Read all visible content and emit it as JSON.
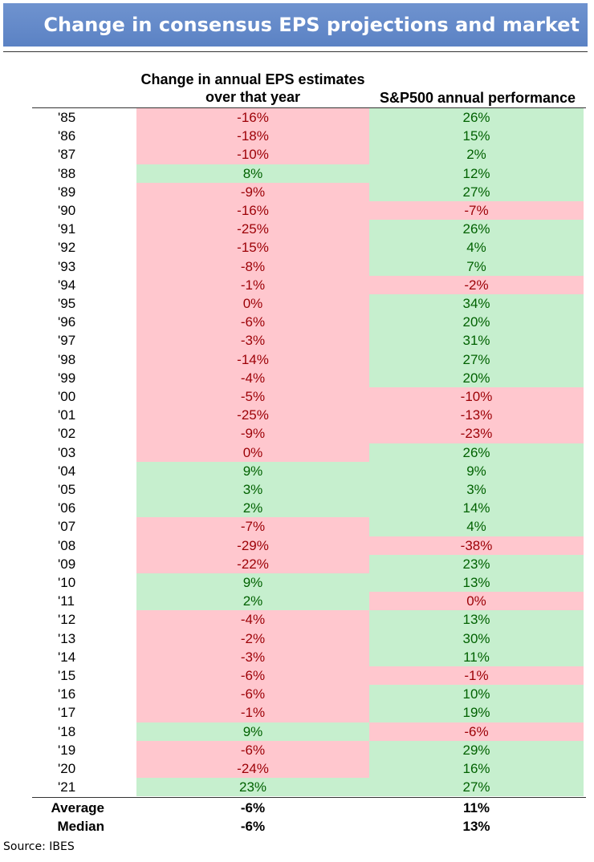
{
  "header": {
    "title": "Change in consensus EPS projections and market returns"
  },
  "table": {
    "columns": [
      "",
      "Change in annual EPS estimates over that year",
      "S&P500 annual performance"
    ],
    "rows": [
      [
        "'85",
        "-16%",
        "26%"
      ],
      [
        "'86",
        "-18%",
        "15%"
      ],
      [
        "'87",
        "-10%",
        "2%"
      ],
      [
        "'88",
        "8%",
        "12%"
      ],
      [
        "'89",
        "-9%",
        "27%"
      ],
      [
        "'90",
        "-16%",
        "-7%"
      ],
      [
        "'91",
        "-25%",
        "26%"
      ],
      [
        "'92",
        "-15%",
        "4%"
      ],
      [
        "'93",
        "-8%",
        "7%"
      ],
      [
        "'94",
        "-1%",
        "-2%"
      ],
      [
        "'95",
        "0%",
        "34%"
      ],
      [
        "'96",
        "-6%",
        "20%"
      ],
      [
        "'97",
        "-3%",
        "31%"
      ],
      [
        "'98",
        "-14%",
        "27%"
      ],
      [
        "'99",
        "-4%",
        "20%"
      ],
      [
        "'00",
        "-5%",
        "-10%"
      ],
      [
        "'01",
        "-25%",
        "-13%"
      ],
      [
        "'02",
        "-9%",
        "-23%"
      ],
      [
        "'03",
        "0%",
        "26%"
      ],
      [
        "'04",
        "9%",
        "9%"
      ],
      [
        "'05",
        "3%",
        "3%"
      ],
      [
        "'06",
        "2%",
        "14%"
      ],
      [
        "'07",
        "-7%",
        "4%"
      ],
      [
        "'08",
        "-29%",
        "-38%"
      ],
      [
        "'09",
        "-22%",
        "23%"
      ],
      [
        "'10",
        "9%",
        "13%"
      ],
      [
        "'11",
        "2%",
        "0%"
      ],
      [
        "'12",
        "-4%",
        "13%"
      ],
      [
        "'13",
        "-2%",
        "30%"
      ],
      [
        "'14",
        "-3%",
        "11%"
      ],
      [
        "'15",
        "-6%",
        "-1%"
      ],
      [
        "'16",
        "-6%",
        "10%"
      ],
      [
        "'17",
        "-1%",
        "19%"
      ],
      [
        "'18",
        "9%",
        "-6%"
      ],
      [
        "'19",
        "-6%",
        "29%"
      ],
      [
        "'20",
        "-24%",
        "16%"
      ],
      [
        "'21",
        "23%",
        "27%"
      ]
    ],
    "summary": [
      [
        "Average",
        "-6%",
        "11%"
      ],
      [
        "Median",
        "-6%",
        "13%"
      ]
    ]
  },
  "source": "Source: IBES"
}
